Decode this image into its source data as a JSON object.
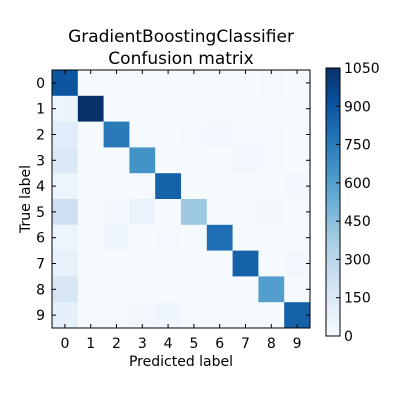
{
  "chart_data": {
    "type": "heatmap",
    "title": [
      "GradientBoostingClassifier",
      "Confusion matrix"
    ],
    "xlabel": "Predicted label",
    "ylabel": "True label",
    "x_categories": [
      "0",
      "1",
      "2",
      "3",
      "4",
      "5",
      "6",
      "7",
      "8",
      "9"
    ],
    "y_categories": [
      "0",
      "1",
      "2",
      "3",
      "4",
      "5",
      "6",
      "7",
      "8",
      "9"
    ],
    "colormap": "Blues",
    "vmin": 0,
    "vmax": 1050,
    "colorbar_ticks": [
      0,
      150,
      300,
      450,
      600,
      750,
      900,
      1050
    ],
    "matrix": [
      [
        900,
        10,
        10,
        10,
        10,
        10,
        10,
        10,
        20,
        10
      ],
      [
        50,
        1050,
        10,
        10,
        10,
        10,
        10,
        10,
        10,
        10
      ],
      [
        120,
        10,
        750,
        10,
        10,
        20,
        30,
        20,
        20,
        10
      ],
      [
        150,
        10,
        10,
        650,
        10,
        10,
        10,
        30,
        20,
        10
      ],
      [
        50,
        10,
        10,
        10,
        850,
        10,
        10,
        10,
        10,
        30
      ],
      [
        220,
        10,
        30,
        70,
        10,
        400,
        10,
        10,
        30,
        10
      ],
      [
        50,
        10,
        40,
        10,
        20,
        10,
        800,
        10,
        10,
        10
      ],
      [
        80,
        10,
        10,
        10,
        10,
        10,
        10,
        850,
        10,
        30
      ],
      [
        170,
        10,
        10,
        10,
        10,
        10,
        10,
        10,
        600,
        10
      ],
      [
        90,
        10,
        10,
        30,
        40,
        10,
        10,
        10,
        10,
        850
      ]
    ]
  }
}
